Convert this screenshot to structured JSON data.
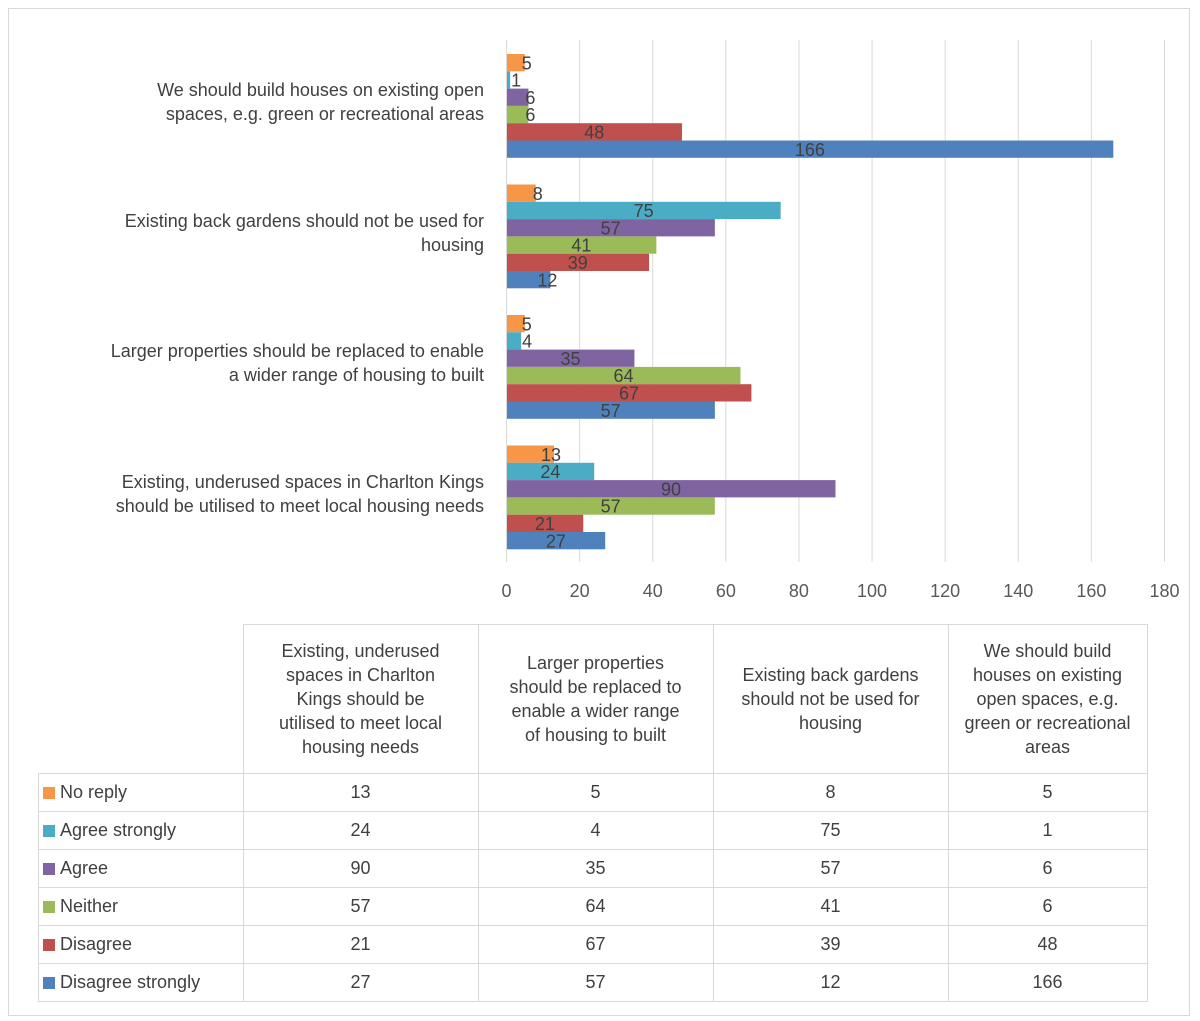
{
  "chart_data": {
    "type": "bar",
    "orientation": "horizontal",
    "categories": [
      "Existing, underused spaces in Charlton Kings should be utilised to meet local housing needs",
      "Larger properties should be replaced to enable a wider range of housing to built",
      "Existing back gardens should not be used for housing",
      "We should build houses on existing open spaces, e.g. green or recreational areas"
    ],
    "series": [
      {
        "name": "No reply",
        "color": "#f79646",
        "values": [
          13,
          5,
          8,
          5
        ]
      },
      {
        "name": "Agree strongly",
        "color": "#4bacc6",
        "values": [
          24,
          4,
          75,
          1
        ]
      },
      {
        "name": "Agree",
        "color": "#8064a2",
        "values": [
          90,
          35,
          57,
          6
        ]
      },
      {
        "name": "Neither",
        "color": "#9bbb59",
        "values": [
          57,
          64,
          41,
          6
        ]
      },
      {
        "name": "Disagree",
        "color": "#c0504d",
        "values": [
          21,
          67,
          39,
          48
        ]
      },
      {
        "name": "Disagree strongly",
        "color": "#4f81bd",
        "values": [
          27,
          57,
          12,
          166
        ]
      }
    ],
    "xlim": [
      0,
      180
    ],
    "x_ticks": [
      "0",
      "20",
      "40",
      "60",
      "80",
      "100",
      "120",
      "140",
      "160",
      "180"
    ],
    "grid": "vertical",
    "legend": "data-table-below",
    "title": "",
    "xlabel": "",
    "ylabel": ""
  },
  "category_labels_lines": [
    [
      "Existing, underused spaces in Charlton Kings",
      "should be utilised to meet local housing needs"
    ],
    [
      "Larger properties should be replaced to enable",
      "a wider range of housing to built"
    ],
    [
      "Existing back gardens should not be used for",
      "housing"
    ],
    [
      "We should build houses on existing open",
      "spaces, e.g. green or recreational areas"
    ]
  ],
  "table_headers_lines": [
    [
      "Existing, underused",
      "spaces in Charlton",
      "Kings should be",
      "utilised to meet local",
      "housing needs"
    ],
    [
      "Larger properties",
      "should be replaced to",
      "enable a wider range",
      "of housing to built"
    ],
    [
      "Existing back gardens",
      "should not be used for",
      "housing"
    ],
    [
      "We should build",
      "houses on existing",
      "open spaces, e.g.",
      "green or recreational",
      "areas"
    ]
  ]
}
